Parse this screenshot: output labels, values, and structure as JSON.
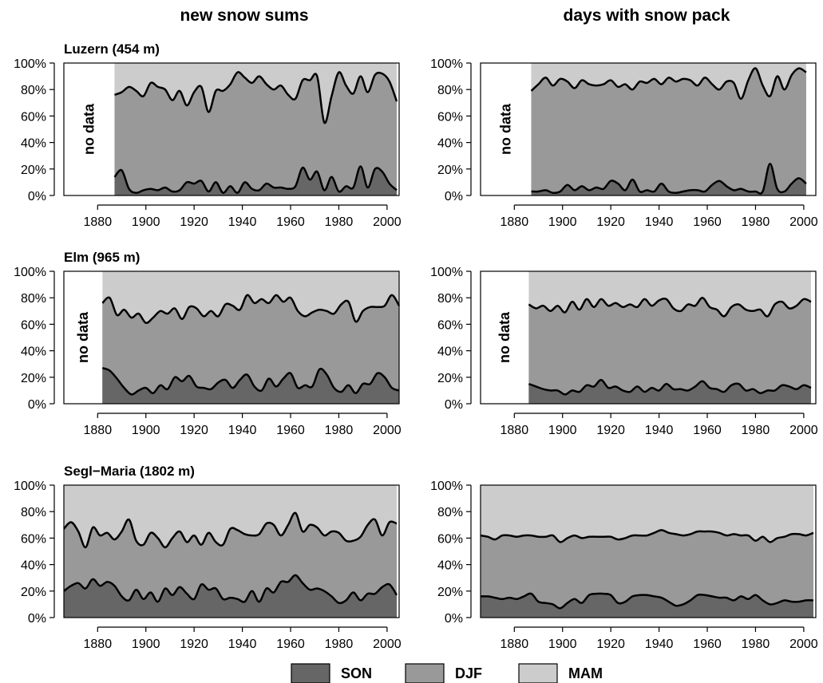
{
  "column_titles": [
    "new snow sums",
    "days with snow pack"
  ],
  "legend": [
    {
      "label": "SON",
      "color": "#666666"
    },
    {
      "label": "DJF",
      "color": "#999999"
    },
    {
      "label": "MAM",
      "color": "#cccccc"
    }
  ],
  "colors": {
    "SON": "#666666",
    "DJF": "#999999",
    "MAM": "#cccccc",
    "line": "#000000"
  },
  "chart_data": [
    {
      "type": "area",
      "title": "Luzern (454 m)",
      "xlim": [
        1866,
        2005
      ],
      "ylim": [
        0,
        100
      ],
      "xticks": [
        1880,
        1900,
        1920,
        1940,
        1960,
        1980,
        2000
      ],
      "yticks": [
        "0%",
        "20%",
        "40%",
        "60%",
        "80%",
        "100%"
      ],
      "no_data_label": "no data",
      "data_start": 1887,
      "x": [
        1887,
        1890,
        1893,
        1896,
        1899,
        1902,
        1905,
        1908,
        1911,
        1914,
        1917,
        1920,
        1923,
        1926,
        1929,
        1932,
        1935,
        1938,
        1941,
        1944,
        1947,
        1950,
        1953,
        1956,
        1959,
        1962,
        1965,
        1968,
        1971,
        1974,
        1977,
        1980,
        1983,
        1986,
        1989,
        1992,
        1995,
        1998,
        2001,
        2004
      ],
      "son": [
        14,
        19,
        5,
        2,
        4,
        5,
        4,
        6,
        3,
        4,
        10,
        9,
        11,
        3,
        10,
        2,
        7,
        2,
        10,
        5,
        4,
        9,
        6,
        6,
        5,
        7,
        21,
        12,
        18,
        4,
        14,
        3,
        7,
        6,
        22,
        6,
        20,
        18,
        9,
        4
      ],
      "son_djf": [
        76,
        78,
        82,
        79,
        75,
        85,
        82,
        80,
        72,
        79,
        68,
        78,
        82,
        63,
        79,
        79,
        84,
        93,
        89,
        85,
        90,
        84,
        80,
        83,
        76,
        73,
        87,
        87,
        90,
        55,
        75,
        93,
        83,
        77,
        90,
        78,
        91,
        92,
        86,
        71
      ],
      "series": [
        {
          "name": "SON"
        },
        {
          "name": "DJF"
        },
        {
          "name": "MAM"
        }
      ]
    },
    {
      "type": "area",
      "title": "",
      "xlim": [
        1866,
        2005
      ],
      "ylim": [
        0,
        100
      ],
      "xticks": [
        1880,
        1900,
        1920,
        1940,
        1960,
        1980,
        2000
      ],
      "yticks": [
        "0%",
        "20%",
        "40%",
        "60%",
        "80%",
        "100%"
      ],
      "no_data_label": "no data",
      "data_start": 1887,
      "x": [
        1887,
        1890,
        1893,
        1896,
        1899,
        1902,
        1905,
        1908,
        1911,
        1914,
        1917,
        1920,
        1923,
        1926,
        1929,
        1932,
        1935,
        1938,
        1941,
        1944,
        1947,
        1950,
        1953,
        1956,
        1959,
        1962,
        1965,
        1968,
        1971,
        1974,
        1977,
        1980,
        1983,
        1986,
        1989,
        1992,
        1995,
        1998,
        2001
      ],
      "son": [
        3,
        3,
        4,
        2,
        3,
        8,
        4,
        7,
        4,
        6,
        5,
        11,
        9,
        4,
        12,
        3,
        4,
        3,
        9,
        3,
        2,
        3,
        4,
        4,
        3,
        8,
        11,
        7,
        4,
        5,
        3,
        3,
        3,
        24,
        5,
        3,
        9,
        13,
        9
      ],
      "son_djf": [
        79,
        84,
        89,
        83,
        88,
        86,
        81,
        87,
        84,
        83,
        84,
        87,
        82,
        84,
        80,
        86,
        85,
        88,
        84,
        89,
        86,
        88,
        87,
        83,
        89,
        84,
        80,
        86,
        85,
        73,
        87,
        96,
        83,
        75,
        90,
        80,
        91,
        96,
        93
      ],
      "series": [
        {
          "name": "SON"
        },
        {
          "name": "DJF"
        },
        {
          "name": "MAM"
        }
      ]
    },
    {
      "type": "area",
      "title": "Elm (965 m)",
      "xlim": [
        1866,
        2005
      ],
      "ylim": [
        0,
        100
      ],
      "xticks": [
        1880,
        1900,
        1920,
        1940,
        1960,
        1980,
        2000
      ],
      "yticks": [
        "0%",
        "20%",
        "40%",
        "60%",
        "80%",
        "100%"
      ],
      "no_data_label": "no data",
      "data_start": 1882,
      "x": [
        1882,
        1885,
        1888,
        1891,
        1894,
        1897,
        1900,
        1903,
        1906,
        1909,
        1912,
        1915,
        1918,
        1921,
        1924,
        1927,
        1930,
        1933,
        1936,
        1939,
        1942,
        1945,
        1948,
        1951,
        1954,
        1957,
        1960,
        1963,
        1966,
        1969,
        1972,
        1975,
        1978,
        1981,
        1984,
        1987,
        1990,
        1993,
        1996,
        1999,
        2002,
        2005
      ],
      "son": [
        27,
        25,
        19,
        12,
        7,
        10,
        12,
        8,
        14,
        11,
        20,
        17,
        21,
        13,
        12,
        11,
        16,
        18,
        12,
        18,
        22,
        13,
        10,
        19,
        13,
        19,
        23,
        12,
        14,
        13,
        26,
        22,
        12,
        9,
        14,
        8,
        15,
        15,
        23,
        20,
        12,
        10
      ],
      "son_djf": [
        76,
        80,
        67,
        71,
        65,
        68,
        61,
        65,
        70,
        68,
        72,
        64,
        73,
        72,
        66,
        70,
        66,
        75,
        74,
        71,
        82,
        76,
        79,
        76,
        82,
        77,
        80,
        70,
        66,
        69,
        71,
        70,
        68,
        75,
        77,
        62,
        70,
        73,
        73,
        74,
        82,
        74
      ],
      "series": [
        {
          "name": "SON"
        },
        {
          "name": "DJF"
        },
        {
          "name": "MAM"
        }
      ]
    },
    {
      "type": "area",
      "title": "",
      "xlim": [
        1866,
        2005
      ],
      "ylim": [
        0,
        100
      ],
      "xticks": [
        1880,
        1900,
        1920,
        1940,
        1960,
        1980,
        2000
      ],
      "yticks": [
        "0%",
        "20%",
        "40%",
        "60%",
        "80%",
        "100%"
      ],
      "no_data_label": "no data",
      "data_start": 1886,
      "x": [
        1886,
        1889,
        1892,
        1895,
        1898,
        1901,
        1904,
        1907,
        1910,
        1913,
        1916,
        1919,
        1922,
        1925,
        1928,
        1931,
        1934,
        1937,
        1940,
        1943,
        1946,
        1949,
        1952,
        1955,
        1958,
        1961,
        1964,
        1967,
        1970,
        1973,
        1976,
        1979,
        1982,
        1985,
        1988,
        1991,
        1994,
        1997,
        2000,
        2003
      ],
      "son": [
        15,
        13,
        11,
        10,
        10,
        7,
        10,
        9,
        14,
        13,
        18,
        12,
        13,
        10,
        9,
        13,
        9,
        12,
        10,
        15,
        11,
        11,
        10,
        13,
        17,
        12,
        11,
        9,
        14,
        15,
        10,
        11,
        8,
        10,
        10,
        14,
        13,
        11,
        14,
        12
      ],
      "son_djf": [
        75,
        72,
        74,
        70,
        74,
        69,
        77,
        71,
        79,
        73,
        79,
        74,
        76,
        73,
        75,
        73,
        79,
        74,
        78,
        79,
        72,
        70,
        75,
        74,
        80,
        73,
        71,
        66,
        73,
        75,
        71,
        70,
        71,
        66,
        75,
        77,
        72,
        74,
        79,
        77
      ],
      "series": [
        {
          "name": "SON"
        },
        {
          "name": "DJF"
        },
        {
          "name": "MAM"
        }
      ]
    },
    {
      "type": "area",
      "title": "Segl−Maria (1802 m)",
      "xlim": [
        1866,
        2005
      ],
      "ylim": [
        0,
        100
      ],
      "xticks": [
        1880,
        1900,
        1920,
        1940,
        1960,
        1980,
        2000
      ],
      "yticks": [
        "0%",
        "20%",
        "40%",
        "60%",
        "80%",
        "100%"
      ],
      "no_data_label": "",
      "data_start": 1866,
      "x": [
        1866,
        1869,
        1872,
        1875,
        1878,
        1881,
        1884,
        1887,
        1890,
        1893,
        1896,
        1899,
        1902,
        1905,
        1908,
        1911,
        1914,
        1917,
        1920,
        1923,
        1926,
        1929,
        1932,
        1935,
        1938,
        1941,
        1944,
        1947,
        1950,
        1953,
        1956,
        1959,
        1962,
        1965,
        1968,
        1971,
        1974,
        1977,
        1980,
        1983,
        1986,
        1989,
        1992,
        1995,
        1998,
        2001,
        2004
      ],
      "son": [
        20,
        24,
        26,
        22,
        29,
        24,
        27,
        24,
        16,
        13,
        21,
        14,
        19,
        12,
        22,
        17,
        23,
        18,
        14,
        25,
        21,
        22,
        14,
        15,
        14,
        12,
        20,
        12,
        22,
        19,
        27,
        27,
        32,
        26,
        21,
        22,
        20,
        16,
        11,
        13,
        19,
        13,
        18,
        18,
        23,
        25,
        17
      ],
      "son_djf": [
        67,
        72,
        65,
        53,
        68,
        62,
        64,
        59,
        65,
        74,
        58,
        55,
        64,
        60,
        53,
        60,
        65,
        57,
        62,
        55,
        64,
        57,
        55,
        67,
        66,
        63,
        62,
        63,
        71,
        70,
        62,
        70,
        79,
        65,
        70,
        68,
        62,
        65,
        64,
        58,
        58,
        61,
        70,
        74,
        62,
        72,
        71
      ],
      "series": [
        {
          "name": "SON"
        },
        {
          "name": "DJF"
        },
        {
          "name": "MAM"
        }
      ]
    },
    {
      "type": "area",
      "title": "",
      "xlim": [
        1866,
        2005
      ],
      "ylim": [
        0,
        100
      ],
      "xticks": [
        1880,
        1900,
        1920,
        1940,
        1960,
        1980,
        2000
      ],
      "yticks": [
        "0%",
        "20%",
        "40%",
        "60%",
        "80%",
        "100%"
      ],
      "no_data_label": "",
      "data_start": 1866,
      "x": [
        1866,
        1869,
        1872,
        1875,
        1878,
        1881,
        1884,
        1887,
        1890,
        1893,
        1896,
        1899,
        1902,
        1905,
        1908,
        1911,
        1914,
        1917,
        1920,
        1923,
        1926,
        1929,
        1932,
        1935,
        1938,
        1941,
        1944,
        1947,
        1950,
        1953,
        1956,
        1959,
        1962,
        1965,
        1968,
        1971,
        1974,
        1977,
        1980,
        1983,
        1986,
        1989,
        1992,
        1995,
        1998,
        2001,
        2004
      ],
      "son": [
        16,
        16,
        15,
        14,
        15,
        14,
        16,
        18,
        12,
        11,
        10,
        7,
        11,
        14,
        11,
        17,
        18,
        18,
        17,
        11,
        12,
        16,
        17,
        17,
        16,
        15,
        12,
        9,
        10,
        13,
        17,
        17,
        16,
        15,
        15,
        13,
        16,
        14,
        17,
        13,
        10,
        11,
        13,
        12,
        12,
        13,
        13
      ],
      "son_djf": [
        62,
        61,
        59,
        62,
        62,
        61,
        62,
        62,
        61,
        61,
        62,
        57,
        60,
        62,
        60,
        61,
        61,
        61,
        61,
        59,
        60,
        62,
        62,
        62,
        64,
        66,
        64,
        63,
        62,
        63,
        65,
        65,
        65,
        64,
        62,
        63,
        62,
        62,
        58,
        61,
        57,
        60,
        61,
        63,
        63,
        62,
        64
      ],
      "series": [
        {
          "name": "SON"
        },
        {
          "name": "DJF"
        },
        {
          "name": "MAM"
        }
      ]
    }
  ]
}
